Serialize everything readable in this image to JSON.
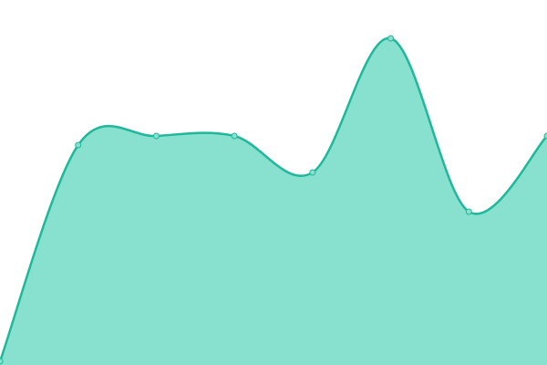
{
  "chart_data": {
    "type": "area",
    "values": [
      4,
      241,
      251,
      251,
      211,
      358,
      168,
      251
    ],
    "ylim": [
      0,
      400
    ],
    "color": "#1fb89a",
    "fill": "#88e0cf",
    "markers": true
  }
}
